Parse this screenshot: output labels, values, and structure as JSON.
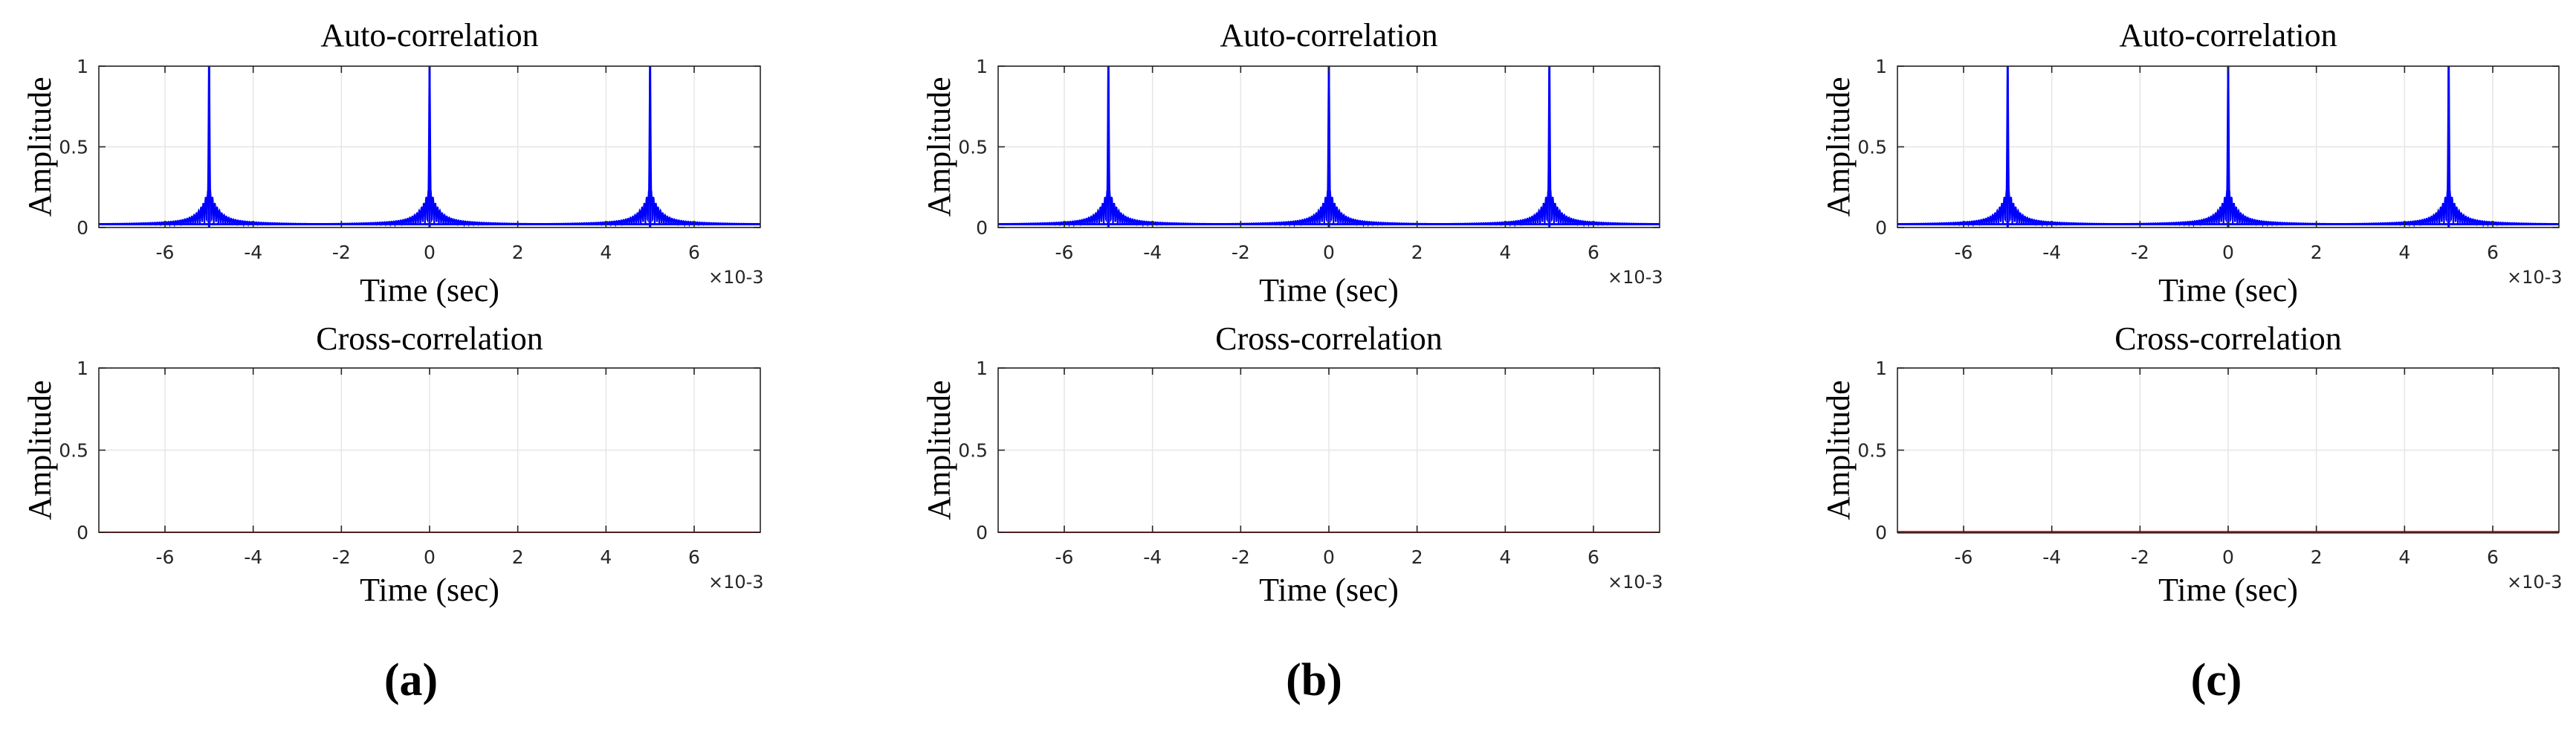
{
  "figure_labels": [
    "(a)",
    "(b)",
    "(c)"
  ],
  "colors": {
    "auto": "#0000ff",
    "cross": "#ff0000",
    "grid": "#e6e6e6",
    "axis": "#262626"
  },
  "chart_data": [
    {
      "panel": "a",
      "type": "line",
      "title": "Auto-correlation",
      "xlabel": "Time (sec)",
      "ylabel": "Amplitude",
      "x_exponent": "×10-3",
      "xlim": [
        -7.5,
        7.5
      ],
      "ylim": [
        0,
        1
      ],
      "xticks": [
        -6,
        -4,
        -2,
        0,
        2,
        4,
        6
      ],
      "xtick_labels": [
        "-6",
        "-4",
        "-2",
        "0",
        "2",
        "4",
        "6"
      ],
      "yticks": [
        0,
        0.5,
        1
      ],
      "ytick_labels": [
        "0",
        "0.5",
        "1"
      ],
      "grid": true,
      "series": [
        {
          "name": "auto-correlation",
          "color": "#0000ff",
          "peaks_x": [
            -5,
            0,
            5
          ],
          "peak_value": 1,
          "floor_value": 0.02,
          "sidelobe_level": 0.2
        }
      ]
    },
    {
      "panel": "a",
      "type": "line",
      "title": "Cross-correlation",
      "xlabel": "Time (sec)",
      "ylabel": "Amplitude",
      "x_exponent": "×10-3",
      "xlim": [
        -7.5,
        7.5
      ],
      "ylim": [
        0,
        1
      ],
      "xticks": [
        -6,
        -4,
        -2,
        0,
        2,
        4,
        6
      ],
      "xtick_labels": [
        "-6",
        "-4",
        "-2",
        "0",
        "2",
        "4",
        "6"
      ],
      "yticks": [
        0,
        0.5,
        1
      ],
      "ytick_labels": [
        "0",
        "0.5",
        "1"
      ],
      "grid": true,
      "series": [
        {
          "name": "cross-correlation",
          "color": "#ff0000",
          "x": [
            -7.5,
            7.5
          ],
          "values": [
            0,
            0
          ]
        }
      ]
    },
    {
      "panel": "b",
      "type": "line",
      "title": "Auto-correlation",
      "xlabel": "Time (sec)",
      "ylabel": "Amplitude",
      "x_exponent": "×10-3",
      "xlim": [
        -7.5,
        7.5
      ],
      "ylim": [
        0,
        1
      ],
      "xticks": [
        -6,
        -4,
        -2,
        0,
        2,
        4,
        6
      ],
      "xtick_labels": [
        "-6",
        "-4",
        "-2",
        "0",
        "2",
        "4",
        "6"
      ],
      "yticks": [
        0,
        0.5,
        1
      ],
      "ytick_labels": [
        "0",
        "0.5",
        "1"
      ],
      "grid": true,
      "series": [
        {
          "name": "auto-correlation",
          "color": "#0000ff",
          "peaks_x": [
            -5,
            0,
            5
          ],
          "peak_value": 1,
          "floor_value": 0.02,
          "sidelobe_level": 0.2
        }
      ]
    },
    {
      "panel": "b",
      "type": "line",
      "title": "Cross-correlation",
      "xlabel": "Time (sec)",
      "ylabel": "Amplitude",
      "x_exponent": "×10-3",
      "xlim": [
        -7.5,
        7.5
      ],
      "ylim": [
        0,
        1
      ],
      "xticks": [
        -6,
        -4,
        -2,
        0,
        2,
        4,
        6
      ],
      "xtick_labels": [
        "-6",
        "-4",
        "-2",
        "0",
        "2",
        "4",
        "6"
      ],
      "yticks": [
        0,
        0.5,
        1
      ],
      "ytick_labels": [
        "0",
        "0.5",
        "1"
      ],
      "grid": true,
      "series": [
        {
          "name": "cross-correlation",
          "color": "#ff0000",
          "x": [
            -7.5,
            7.5
          ],
          "values": [
            0,
            0
          ]
        }
      ]
    },
    {
      "panel": "c",
      "type": "line",
      "title": "Auto-correlation",
      "xlabel": "Time (sec)",
      "ylabel": "Amplitude",
      "x_exponent": "×10-3",
      "xlim": [
        -7.5,
        7.5
      ],
      "ylim": [
        0,
        1
      ],
      "xticks": [
        -6,
        -4,
        -2,
        0,
        2,
        4,
        6
      ],
      "xtick_labels": [
        "-6",
        "-4",
        "-2",
        "0",
        "2",
        "4",
        "6"
      ],
      "yticks": [
        0,
        0.5,
        1
      ],
      "ytick_labels": [
        "0",
        "0.5",
        "1"
      ],
      "grid": true,
      "series": [
        {
          "name": "auto-correlation",
          "color": "#0000ff",
          "peaks_x": [
            -5,
            0,
            5
          ],
          "peak_value": 1,
          "floor_value": 0.02,
          "sidelobe_level": 0.2
        }
      ]
    },
    {
      "panel": "c",
      "type": "line",
      "title": "Cross-correlation",
      "xlabel": "Time (sec)",
      "ylabel": "Amplitude",
      "x_exponent": "×10-3",
      "xlim": [
        -7.5,
        7.5
      ],
      "ylim": [
        0,
        1
      ],
      "xticks": [
        -6,
        -4,
        -2,
        0,
        2,
        4,
        6
      ],
      "xtick_labels": [
        "-6",
        "-4",
        "-2",
        "0",
        "2",
        "4",
        "6"
      ],
      "yticks": [
        0,
        0.5,
        1
      ],
      "ytick_labels": [
        "0",
        "0.5",
        "1"
      ],
      "grid": true,
      "series": [
        {
          "name": "cross-correlation",
          "color": "#ff0000",
          "x": [
            -7.5,
            7.5
          ],
          "values": [
            0,
            0
          ]
        }
      ]
    }
  ]
}
